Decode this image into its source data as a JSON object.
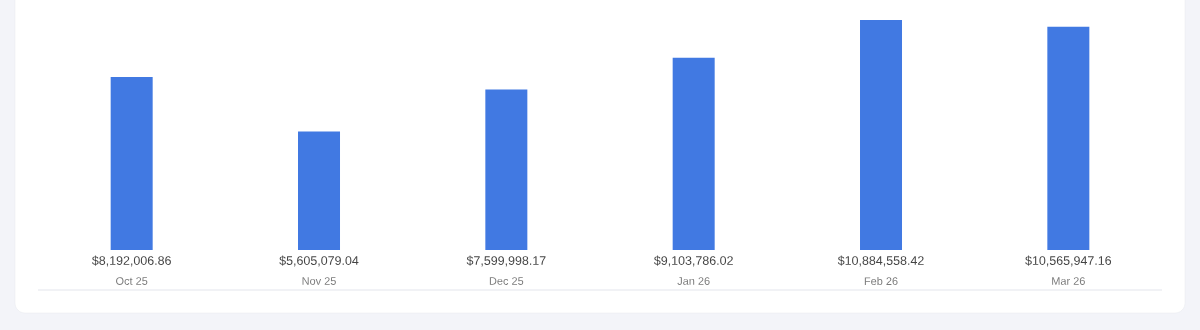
{
  "chart_data": {
    "type": "bar",
    "categories": [
      "Oct 25",
      "Nov 25",
      "Dec 25",
      "Jan 26",
      "Feb 26",
      "Mar 26"
    ],
    "values": [
      8192006.86,
      5605079.04,
      7599998.17,
      9103786.02,
      10884558.42,
      10565947.16
    ],
    "value_labels": [
      "$8,192,006.86",
      "$5,605,079.04",
      "$7,599,998.17",
      "$9,103,786.02",
      "$10,884,558.42",
      "$10,565,947.16"
    ],
    "color": "#4179e2"
  }
}
